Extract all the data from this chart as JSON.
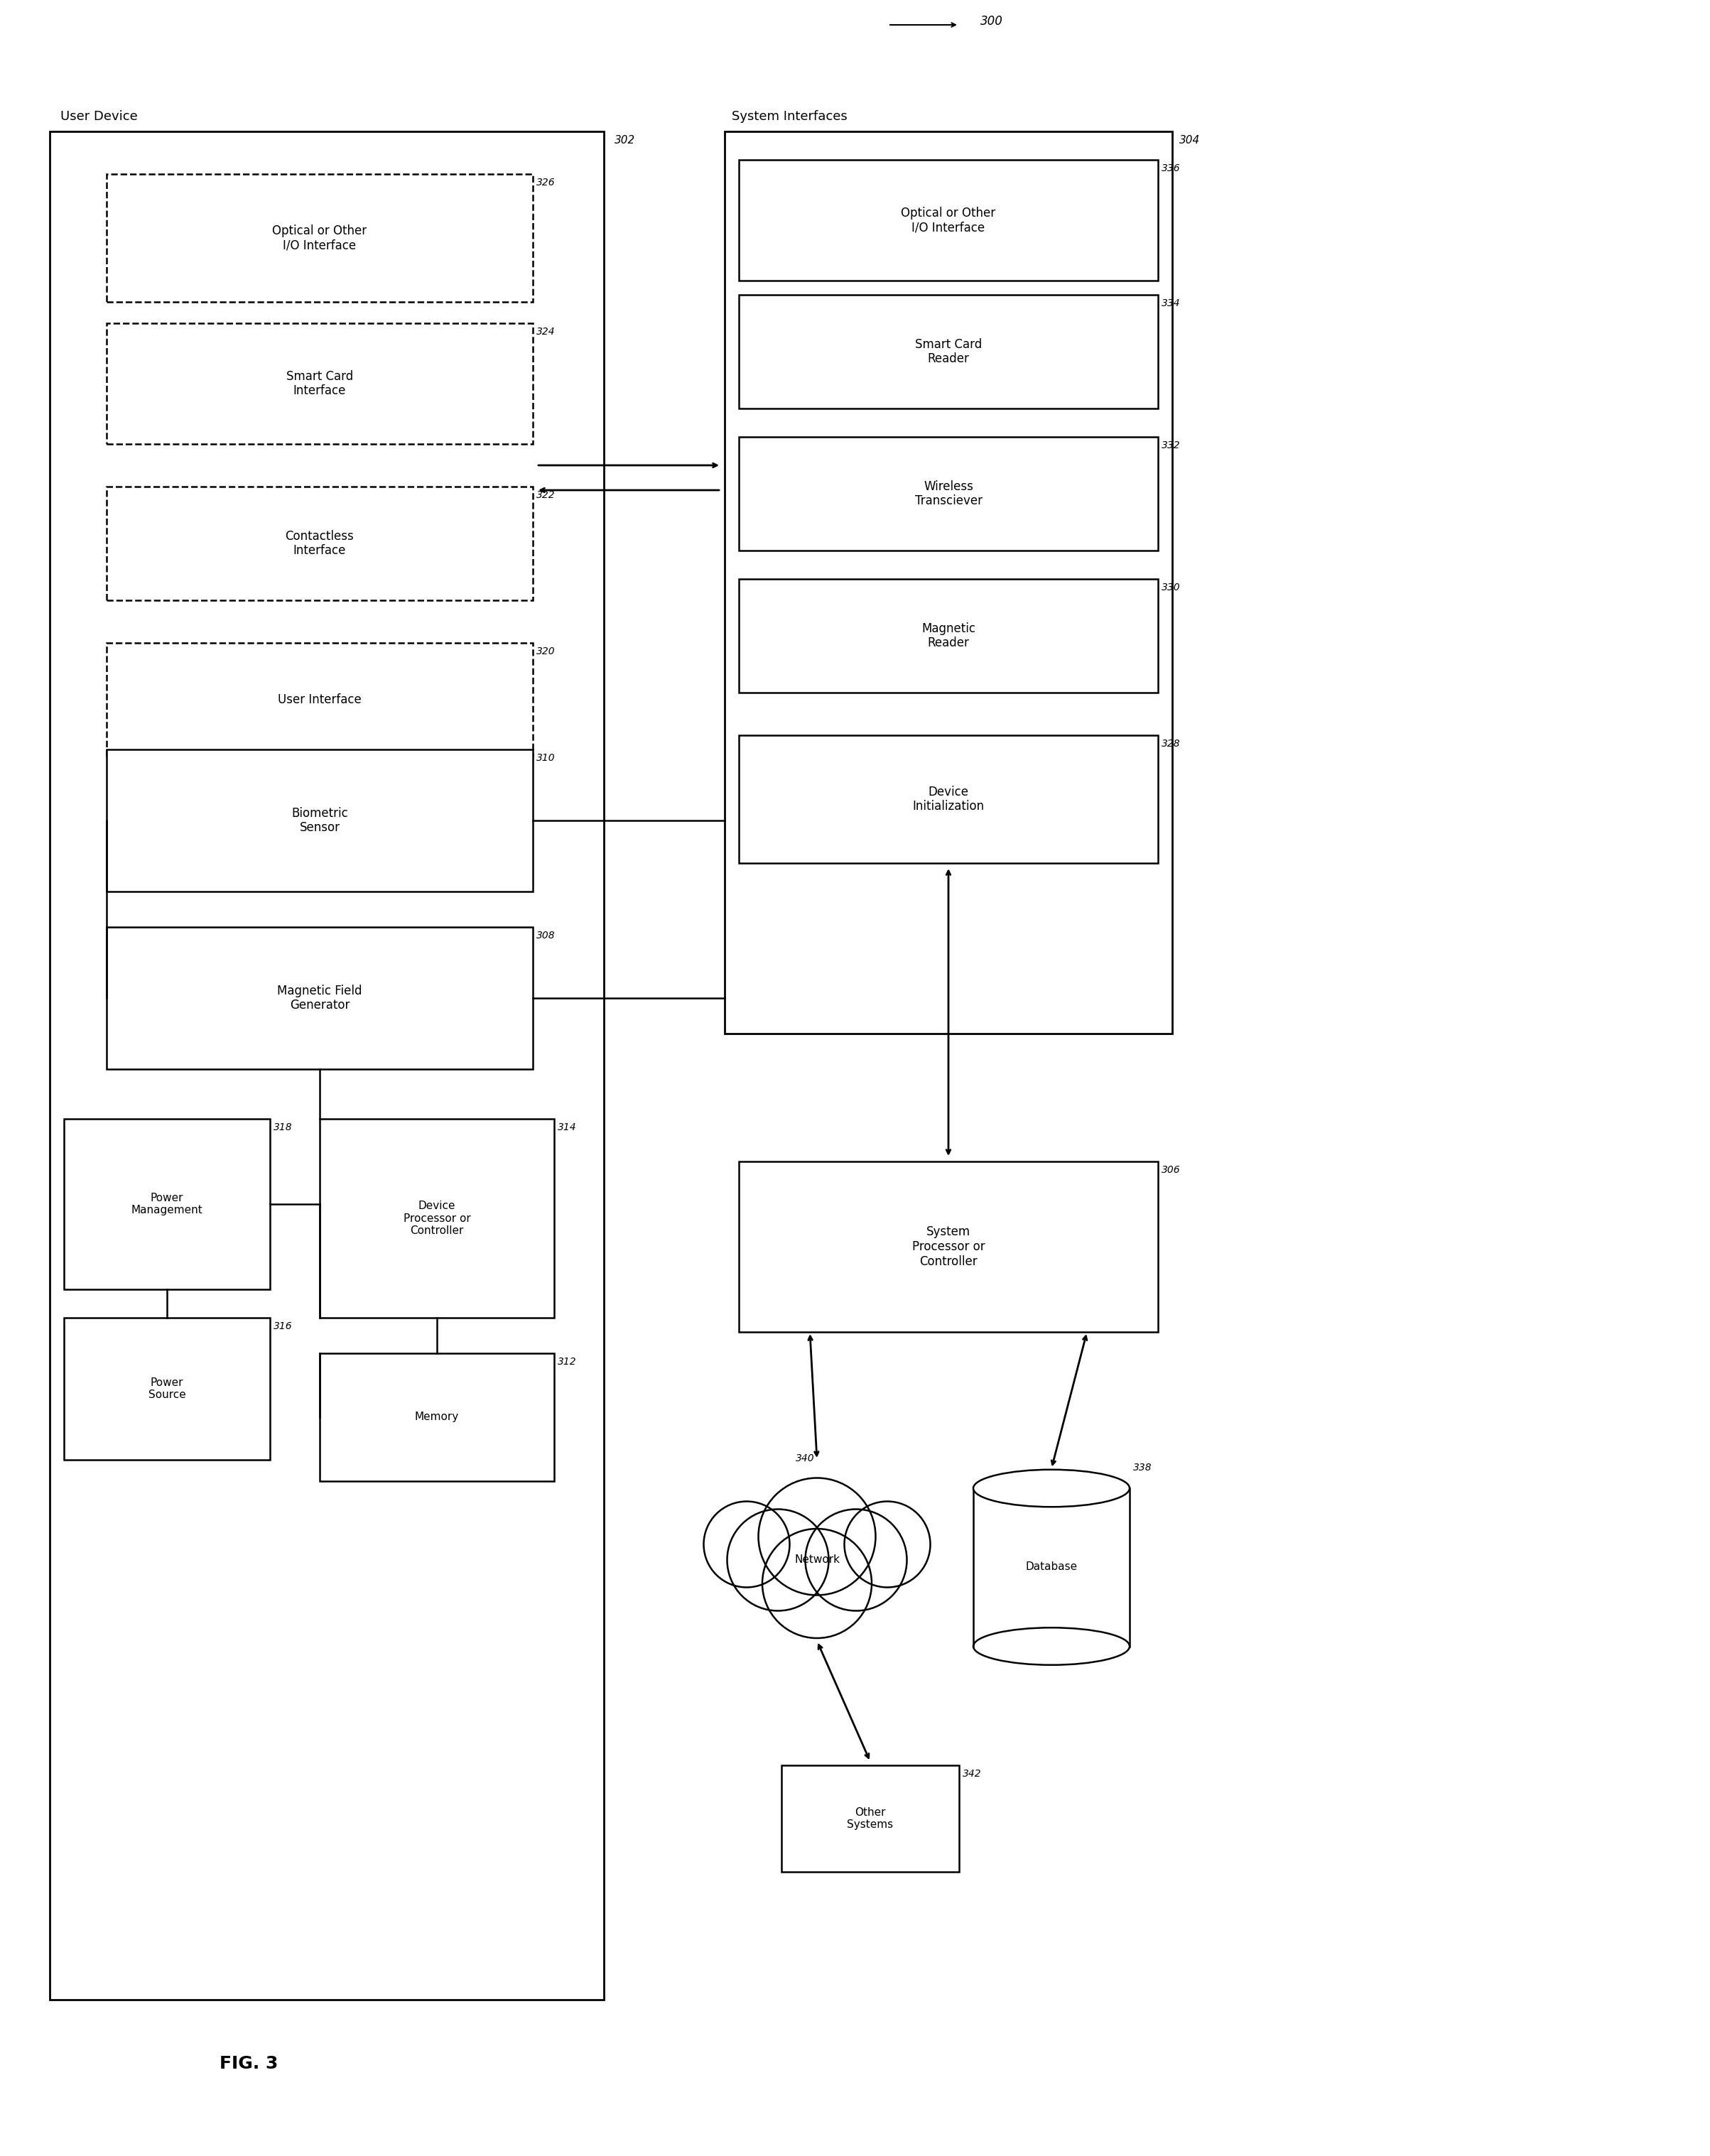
{
  "fig_label": "FIG. 3",
  "arrow_300": "300",
  "bg_color": "#ffffff",
  "line_color": "#000000",
  "text_color": "#000000",
  "user_device_label": "User Device",
  "user_device_num": "302",
  "system_interfaces_label": "System Interfaces",
  "system_interfaces_num": "304",
  "left_boxes_dashed": [
    {
      "label": "Optical or Other\nI/O Interface",
      "num": "326"
    },
    {
      "label": "Smart Card\nInterface",
      "num": "324"
    },
    {
      "label": "Contactless\nInterface",
      "num": "322"
    },
    {
      "label": "User Interface",
      "num": "320"
    }
  ],
  "left_boxes_solid": [
    {
      "label": "Biometric\nSensor",
      "num": "310"
    },
    {
      "label": "Magnetic Field\nGenerator",
      "num": "308"
    }
  ],
  "bottom_left_boxes": [
    {
      "label": "Power\nManagement",
      "num": "318"
    },
    {
      "label": "Power\nSource",
      "num": "316"
    }
  ],
  "bottom_right_boxes": [
    {
      "label": "Device\nProcessor or\nController",
      "num": "314"
    },
    {
      "label": "Memory",
      "num": "312"
    }
  ],
  "right_boxes_solid": [
    {
      "label": "Optical or Other\nI/O Interface",
      "num": "336"
    },
    {
      "label": "Smart Card\nReader",
      "num": "334"
    },
    {
      "label": "Wireless\nTransciever",
      "num": "332"
    },
    {
      "label": "Magnetic\nReader",
      "num": "330"
    },
    {
      "label": "Device\nInitialization",
      "num": "328"
    }
  ],
  "system_processor_box": {
    "label": "System\nProcessor or\nController",
    "num": "306"
  },
  "network_box": {
    "label": "Network",
    "num": "340"
  },
  "database_box": {
    "label": "Database",
    "num": "338"
  },
  "other_systems_box": {
    "label": "Other\nSystems",
    "num": "342"
  }
}
